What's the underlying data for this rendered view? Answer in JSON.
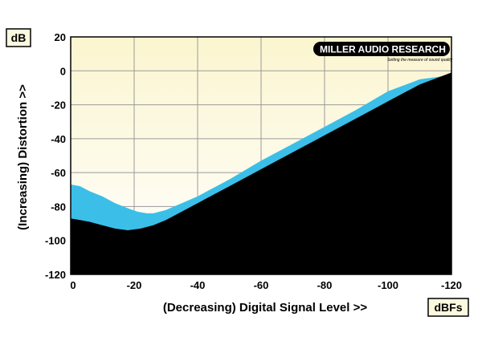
{
  "chart_data": {
    "type": "area",
    "title": "",
    "xlabel": "(Decreasing) Digital Signal Level >>",
    "ylabel": "(Increasing) Distortion >>",
    "x_unit": "dBFs",
    "y_unit": "dB",
    "xlim": [
      0,
      -120
    ],
    "ylim": [
      -120,
      20
    ],
    "x_ticks": [
      {
        "value": 0,
        "label": "0"
      },
      {
        "value": -20,
        "label": "-20"
      },
      {
        "value": -40,
        "label": "-40"
      },
      {
        "value": -60,
        "label": "-60"
      },
      {
        "value": -80,
        "label": "-80"
      },
      {
        "value": -100,
        "label": "-100"
      },
      {
        "value": -120,
        "label": "-120"
      }
    ],
    "y_ticks": [
      {
        "value": 20,
        "label": "20"
      },
      {
        "value": 0,
        "label": "0"
      },
      {
        "value": -20,
        "label": "-20"
      },
      {
        "value": -40,
        "label": "-40"
      },
      {
        "value": -60,
        "label": "-60"
      },
      {
        "value": -80,
        "label": "-80"
      },
      {
        "value": -100,
        "label": "-100"
      },
      {
        "value": -120,
        "label": "-120"
      }
    ],
    "grid": true,
    "series": [
      {
        "color": "#3bbfe8",
        "x": [
          0,
          -3,
          -6,
          -10,
          -14,
          -18,
          -21,
          -24,
          -26,
          -30,
          -35,
          -40,
          -50,
          -60,
          -70,
          -80,
          -90,
          -100,
          -110,
          -118
        ],
        "values": [
          -67,
          -68,
          -71,
          -74,
          -78,
          -81,
          -83,
          -84,
          -84,
          -82,
          -78,
          -74,
          -64,
          -53,
          -43,
          -33,
          -23,
          -12,
          -5,
          -3
        ]
      },
      {
        "color": "#000000",
        "x": [
          0,
          -3,
          -6,
          -10,
          -14,
          -18,
          -22,
          -26,
          -30,
          -35,
          -40,
          -50,
          -60,
          -70,
          -80,
          -90,
          -100,
          -110,
          -120
        ],
        "values": [
          -87,
          -88,
          -89,
          -91,
          -93,
          -94,
          -93,
          -91,
          -88,
          -83,
          -78,
          -68,
          -58,
          -48,
          -38,
          -28,
          -18,
          -8,
          -1
        ]
      }
    ],
    "plot_background": "#fdf9df",
    "logo": {
      "name": "MILLER AUDIO RESEARCH",
      "tagline": "Setting the measure of sound quality"
    }
  }
}
